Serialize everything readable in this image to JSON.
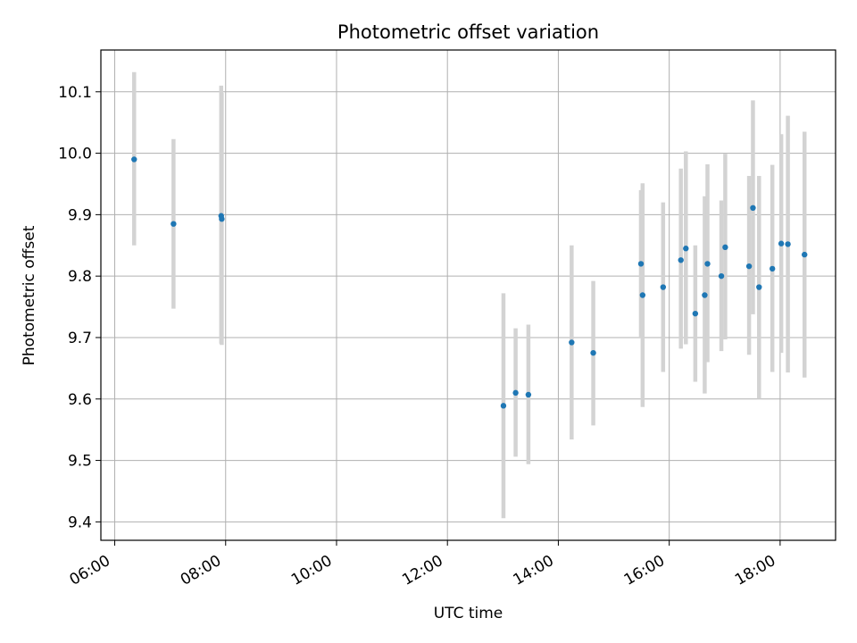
{
  "chart_data": {
    "type": "scatter",
    "title": "Photometric offset variation",
    "xlabel": "UTC time",
    "ylabel": "Photometric offset",
    "x_unit": "hours UTC",
    "xlim": [
      5.75,
      19.0
    ],
    "ylim": [
      9.37,
      10.168
    ],
    "x_ticks": [
      {
        "value": 6,
        "label": "06:00"
      },
      {
        "value": 8,
        "label": "08:00"
      },
      {
        "value": 10,
        "label": "10:00"
      },
      {
        "value": 12,
        "label": "12:00"
      },
      {
        "value": 14,
        "label": "14:00"
      },
      {
        "value": 16,
        "label": "16:00"
      },
      {
        "value": 18,
        "label": "18:00"
      }
    ],
    "y_ticks": [
      {
        "value": 9.4,
        "label": "9.4"
      },
      {
        "value": 9.5,
        "label": "9.5"
      },
      {
        "value": 9.6,
        "label": "9.6"
      },
      {
        "value": 9.7,
        "label": "9.7"
      },
      {
        "value": 9.8,
        "label": "9.8"
      },
      {
        "value": 9.9,
        "label": "9.9"
      },
      {
        "value": 10.0,
        "label": "10.0"
      },
      {
        "value": 10.1,
        "label": "10.1"
      }
    ],
    "grid": true,
    "marker_color": "#1f77b4",
    "errorbar_color": "#d3d3d3",
    "points": [
      {
        "x": 6.35,
        "y": 9.99,
        "ylo": 9.85,
        "yhi": 10.132
      },
      {
        "x": 7.06,
        "y": 9.885,
        "ylo": 9.747,
        "yhi": 10.023
      },
      {
        "x": 7.92,
        "y": 9.898,
        "ylo": 9.69,
        "yhi": 10.11
      },
      {
        "x": 7.93,
        "y": 9.893,
        "ylo": 9.688,
        "yhi": 10.098
      },
      {
        "x": 13.01,
        "y": 9.589,
        "ylo": 9.406,
        "yhi": 9.772
      },
      {
        "x": 13.23,
        "y": 9.61,
        "ylo": 9.506,
        "yhi": 9.715
      },
      {
        "x": 13.46,
        "y": 9.607,
        "ylo": 9.494,
        "yhi": 9.721
      },
      {
        "x": 14.24,
        "y": 9.692,
        "ylo": 9.534,
        "yhi": 9.85
      },
      {
        "x": 14.63,
        "y": 9.675,
        "ylo": 9.557,
        "yhi": 9.792
      },
      {
        "x": 15.49,
        "y": 9.82,
        "ylo": 9.7,
        "yhi": 9.94
      },
      {
        "x": 15.52,
        "y": 9.769,
        "ylo": 9.587,
        "yhi": 9.951
      },
      {
        "x": 15.89,
        "y": 9.782,
        "ylo": 9.644,
        "yhi": 9.92
      },
      {
        "x": 16.21,
        "y": 9.826,
        "ylo": 9.682,
        "yhi": 9.975
      },
      {
        "x": 16.3,
        "y": 9.845,
        "ylo": 9.689,
        "yhi": 10.003
      },
      {
        "x": 16.47,
        "y": 9.739,
        "ylo": 9.628,
        "yhi": 9.85
      },
      {
        "x": 16.64,
        "y": 9.769,
        "ylo": 9.609,
        "yhi": 9.93
      },
      {
        "x": 16.69,
        "y": 9.82,
        "ylo": 9.66,
        "yhi": 9.982
      },
      {
        "x": 16.94,
        "y": 9.8,
        "ylo": 9.678,
        "yhi": 9.923
      },
      {
        "x": 17.01,
        "y": 9.847,
        "ylo": 9.697,
        "yhi": 9.999
      },
      {
        "x": 17.44,
        "y": 9.816,
        "ylo": 9.672,
        "yhi": 9.963
      },
      {
        "x": 17.51,
        "y": 9.911,
        "ylo": 9.738,
        "yhi": 10.086
      },
      {
        "x": 17.62,
        "y": 9.782,
        "ylo": 9.6,
        "yhi": 9.963
      },
      {
        "x": 17.86,
        "y": 9.812,
        "ylo": 9.644,
        "yhi": 9.981
      },
      {
        "x": 18.02,
        "y": 9.853,
        "ylo": 9.675,
        "yhi": 10.031
      },
      {
        "x": 18.14,
        "y": 9.852,
        "ylo": 9.643,
        "yhi": 10.061
      },
      {
        "x": 18.44,
        "y": 9.835,
        "ylo": 9.635,
        "yhi": 10.035
      }
    ]
  }
}
